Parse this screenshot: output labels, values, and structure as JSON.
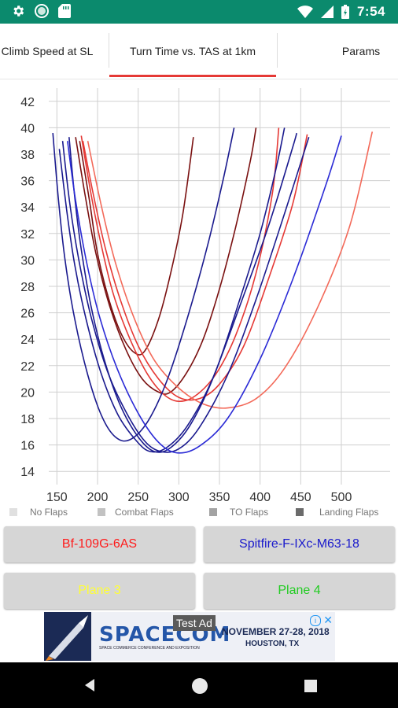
{
  "status_bar": {
    "time": "7:54",
    "left_icons": [
      "gear-icon",
      "circle-icon",
      "sd-card-icon"
    ],
    "right_icons": [
      "wifi-icon",
      "signal-icon",
      "battery-icon"
    ],
    "bg_color": "#0b8a6d"
  },
  "tabs": [
    {
      "label": "Climb Speed at SL",
      "active": false
    },
    {
      "label": "Turn Time vs. TAS at 1km",
      "active": true
    },
    {
      "label": "Params",
      "active": false
    }
  ],
  "chart_data": {
    "type": "line",
    "title": "",
    "xlabel": "",
    "ylabel": "",
    "xlim": [
      140,
      560
    ],
    "ylim": [
      13,
      43
    ],
    "x_ticks": [
      150,
      200,
      250,
      300,
      350,
      400,
      450,
      500
    ],
    "y_ticks": [
      14,
      16,
      18,
      20,
      22,
      24,
      26,
      28,
      30,
      32,
      34,
      36,
      38,
      40,
      42
    ],
    "grid": true,
    "series": [
      {
        "color": "#7a1010",
        "points": [
          [
            178,
            39
          ],
          [
            190,
            34.5
          ],
          [
            200,
            30.5
          ],
          [
            215,
            26.8
          ],
          [
            230,
            24.3
          ],
          [
            245,
            23.0
          ],
          [
            258,
            23.1
          ],
          [
            275,
            25.5
          ],
          [
            290,
            29.0
          ],
          [
            305,
            33.5
          ],
          [
            318,
            39.3
          ]
        ]
      },
      {
        "color": "#7a1010",
        "points": [
          [
            173,
            39.3
          ],
          [
            185,
            34.8
          ],
          [
            198,
            30.5
          ],
          [
            215,
            26.5
          ],
          [
            235,
            23.2
          ],
          [
            255,
            21.0
          ],
          [
            275,
            20.0
          ],
          [
            290,
            20.0
          ],
          [
            310,
            21.5
          ],
          [
            330,
            24.0
          ],
          [
            350,
            27.8
          ],
          [
            370,
            32.5
          ],
          [
            388,
            37.5
          ],
          [
            395,
            40.0
          ]
        ]
      },
      {
        "color": "#e53935",
        "points": [
          [
            180,
            39.4
          ],
          [
            192,
            35.0
          ],
          [
            205,
            31.0
          ],
          [
            220,
            27.3
          ],
          [
            240,
            24.0
          ],
          [
            262,
            21.3
          ],
          [
            282,
            19.8
          ],
          [
            300,
            19.3
          ],
          [
            320,
            19.7
          ],
          [
            345,
            21.3
          ],
          [
            370,
            24.3
          ],
          [
            395,
            29.0
          ],
          [
            415,
            35.0
          ],
          [
            423,
            40.0
          ]
        ]
      },
      {
        "color": "#e53935",
        "points": [
          [
            182,
            39.0
          ],
          [
            196,
            34.6
          ],
          [
            210,
            30.8
          ],
          [
            228,
            27.0
          ],
          [
            250,
            23.5
          ],
          [
            275,
            21.0
          ],
          [
            300,
            19.6
          ],
          [
            325,
            19.5
          ],
          [
            350,
            20.6
          ],
          [
            380,
            23.5
          ],
          [
            410,
            28.5
          ],
          [
            440,
            34.2
          ],
          [
            458,
            39.5
          ]
        ]
      },
      {
        "color": "#f36a5a",
        "points": [
          [
            188,
            39.0
          ],
          [
            205,
            34.0
          ],
          [
            222,
            29.8
          ],
          [
            245,
            25.6
          ],
          [
            270,
            22.4
          ],
          [
            300,
            20.3
          ],
          [
            330,
            19.1
          ],
          [
            360,
            18.8
          ],
          [
            395,
            19.5
          ],
          [
            430,
            21.8
          ],
          [
            470,
            26.3
          ],
          [
            510,
            32.5
          ],
          [
            538,
            39.7
          ]
        ]
      },
      {
        "color": "#1a1a8e",
        "points": [
          [
            145,
            39.6
          ],
          [
            152,
            34.5
          ],
          [
            160,
            30.0
          ],
          [
            172,
            25.5
          ],
          [
            188,
            21.3
          ],
          [
            205,
            18.2
          ],
          [
            222,
            16.6
          ],
          [
            240,
            16.4
          ],
          [
            262,
            17.8
          ],
          [
            285,
            20.8
          ],
          [
            310,
            25.5
          ],
          [
            335,
            31.0
          ],
          [
            355,
            36.2
          ],
          [
            368,
            40.0
          ]
        ]
      },
      {
        "color": "#1a1a8e",
        "points": [
          [
            165,
            39.3
          ],
          [
            172,
            34.7
          ],
          [
            180,
            30.8
          ],
          [
            192,
            26.5
          ],
          [
            208,
            22.5
          ],
          [
            228,
            19.0
          ],
          [
            250,
            16.6
          ],
          [
            270,
            15.5
          ],
          [
            290,
            15.8
          ],
          [
            315,
            17.6
          ],
          [
            345,
            21.5
          ],
          [
            375,
            27.0
          ],
          [
            400,
            32.0
          ],
          [
            420,
            37.0
          ],
          [
            430,
            40.0
          ]
        ]
      },
      {
        "color": "#1a1a8e",
        "points": [
          [
            153,
            38.4
          ],
          [
            162,
            33.8
          ],
          [
            172,
            29.6
          ],
          [
            186,
            25.5
          ],
          [
            204,
            21.5
          ],
          [
            225,
            18.3
          ],
          [
            248,
            16.3
          ],
          [
            265,
            15.5
          ],
          [
            285,
            15.8
          ],
          [
            310,
            17.4
          ],
          [
            340,
            20.8
          ],
          [
            375,
            26.5
          ],
          [
            410,
            32.5
          ],
          [
            440,
            38.5
          ],
          [
            445,
            39.6
          ]
        ]
      },
      {
        "color": "#1a1a8e",
        "points": [
          [
            157,
            39.0
          ],
          [
            166,
            34.2
          ],
          [
            177,
            30.0
          ],
          [
            192,
            25.7
          ],
          [
            212,
            21.6
          ],
          [
            235,
            18.5
          ],
          [
            258,
            16.3
          ],
          [
            278,
            15.5
          ],
          [
            300,
            15.7
          ],
          [
            325,
            17.3
          ],
          [
            360,
            21.3
          ],
          [
            395,
            27.0
          ],
          [
            430,
            33.5
          ],
          [
            460,
            39.3
          ]
        ]
      },
      {
        "color": "#2b2bd6",
        "points": [
          [
            163,
            39.0
          ],
          [
            173,
            34.5
          ],
          [
            186,
            30.0
          ],
          [
            202,
            25.8
          ],
          [
            224,
            21.8
          ],
          [
            250,
            18.4
          ],
          [
            275,
            16.2
          ],
          [
            298,
            15.4
          ],
          [
            325,
            15.9
          ],
          [
            360,
            18.0
          ],
          [
            400,
            22.5
          ],
          [
            440,
            28.5
          ],
          [
            480,
            35.5
          ],
          [
            500,
            39.4
          ]
        ]
      }
    ]
  },
  "legend": [
    {
      "label": "No Flaps",
      "color": "#e0e0e0"
    },
    {
      "label": "Combat Flaps",
      "color": "#c2c2c2"
    },
    {
      "label": "TO Flaps",
      "color": "#a3a3a3"
    },
    {
      "label": "Landing Flaps",
      "color": "#6b6b6b"
    }
  ],
  "planes": [
    {
      "label": "Bf-109G-6AS",
      "color": "#ff1a1a"
    },
    {
      "label": "Spitfire-F-IXc-M63-18",
      "color": "#1a1acc"
    },
    {
      "label": "Plane 3",
      "color": "#ffff33"
    },
    {
      "label": "Plane 4",
      "color": "#22cc22"
    }
  ],
  "ad": {
    "label": "Test Ad",
    "brand": "SPACECOM",
    "tagline": "SPACE COMMERCE CONFERENCE AND EXPOSITION",
    "dates": "NOVEMBER 27-28, 2018",
    "location": "HOUSTON, TX"
  },
  "nav_icons": [
    "back-icon",
    "home-icon",
    "recents-icon"
  ]
}
